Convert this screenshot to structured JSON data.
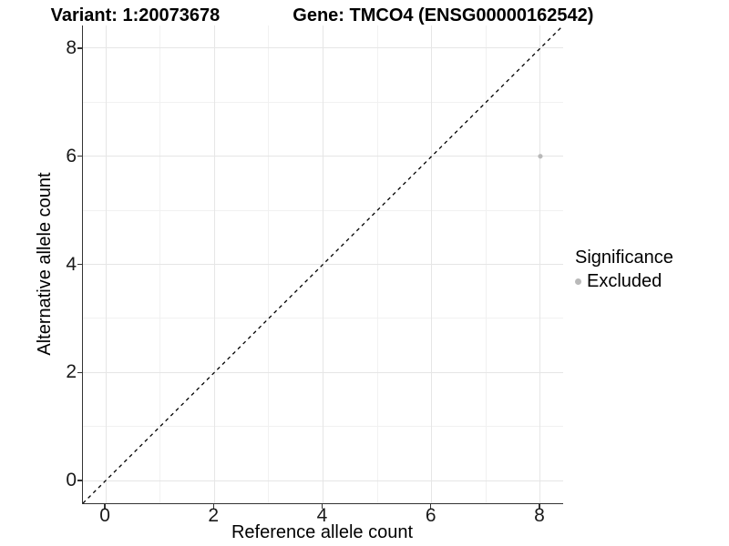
{
  "chart_data": {
    "type": "scatter",
    "title_left": "Variant: 1:20073678",
    "title_right": "Gene: TMCO4 (ENSG00000162542)",
    "xlabel": "Reference allele count",
    "ylabel": "Alternative allele count",
    "xlim": [
      -0.42,
      8.42
    ],
    "ylim": [
      -0.42,
      8.42
    ],
    "major_ticks": [
      0,
      2,
      4,
      6,
      8
    ],
    "minor_ticks": [
      1,
      3,
      5,
      7
    ],
    "tick_labels": [
      "0",
      "2",
      "4",
      "6",
      "8"
    ],
    "grid": true,
    "points": [
      {
        "x": 8,
        "y": 6,
        "series": "Excluded"
      }
    ],
    "diagonal": {
      "style": "dashed",
      "from": [
        -0.42,
        -0.42
      ],
      "to": [
        8.42,
        8.42
      ],
      "color": "#000000"
    },
    "legend": {
      "position": "right",
      "title": "Significance",
      "items": [
        {
          "label": "Excluded",
          "color": "#b9b9b9"
        }
      ]
    },
    "colors": {
      "point": "#b9b9b9",
      "grid_major": "#e6e6e6",
      "grid_minor": "#f1f1f1",
      "axis_line": "#333333",
      "text": "#000000"
    }
  }
}
